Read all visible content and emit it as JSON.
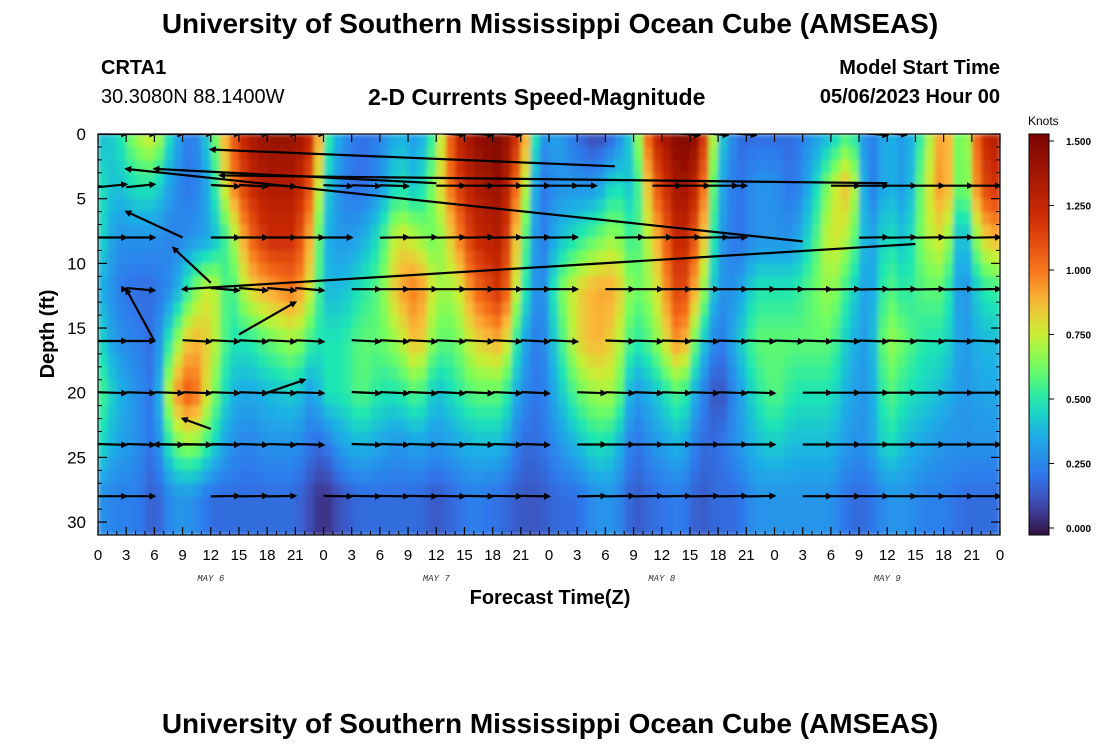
{
  "header": {
    "title": "University of Southern Mississippi Ocean Cube (AMSEAS)",
    "station_id": "CRTA1",
    "station_location": "30.3080N  88.1400W",
    "model_start_label": "Model Start Time",
    "model_start_value": "05/06/2023 Hour 00"
  },
  "footer": {
    "title": "University of Southern Mississippi Ocean Cube (AMSEAS)"
  },
  "chart_data": {
    "type": "heatmap",
    "title": "2-D Currents Speed-Magnitude",
    "xlabel": "Forecast Time(Z)",
    "ylabel": "Depth (ft)",
    "xlim": [
      0,
      96
    ],
    "ylim": [
      0,
      31
    ],
    "x_tick_values": [
      0,
      3,
      6,
      9,
      12,
      15,
      18,
      21,
      24,
      27,
      30,
      33,
      36,
      39,
      42,
      45,
      48,
      51,
      54,
      57,
      60,
      63,
      66,
      69,
      72,
      75,
      78,
      81,
      84,
      87,
      90,
      93,
      96
    ],
    "x_tick_labels": [
      "0",
      "3",
      "6",
      "9",
      "12",
      "15",
      "18",
      "21",
      "0",
      "3",
      "6",
      "9",
      "12",
      "15",
      "18",
      "21",
      "0",
      "3",
      "6",
      "9",
      "12",
      "15",
      "18",
      "21",
      "0",
      "3",
      "6",
      "9",
      "12",
      "15",
      "18",
      "21",
      "0"
    ],
    "day_labels": [
      {
        "text": "MAY 6",
        "x": 12
      },
      {
        "text": "MAY 7",
        "x": 36
      },
      {
        "text": "MAY 8",
        "x": 60
      },
      {
        "text": "MAY 9",
        "x": 84
      }
    ],
    "y_tick_values": [
      0,
      5,
      10,
      15,
      20,
      25,
      30
    ],
    "y_tick_labels": [
      "0",
      "5",
      "10",
      "15",
      "20",
      "25",
      "30"
    ],
    "depths": [
      0,
      4,
      8,
      12,
      16,
      20,
      24,
      28
    ],
    "colorbar": {
      "title": "Knots",
      "range": [
        0.0,
        1.5
      ],
      "tick_values": [
        0.0,
        0.25,
        0.5,
        0.75,
        1.0,
        1.25,
        1.5
      ],
      "tick_labels": [
        "0.000",
        "0.250",
        "0.500",
        "0.750",
        "1.000",
        "1.250",
        "1.500"
      ]
    },
    "speed_columns": [
      {
        "x": 0,
        "s": [
          0.4,
          0.5,
          0.5,
          0.4,
          0.5,
          0.6,
          0.5,
          0.3
        ]
      },
      {
        "x": 2,
        "s": [
          0.45,
          0.4,
          0.3,
          0.25,
          0.3,
          0.4,
          0.35,
          0.25
        ]
      },
      {
        "x": 4,
        "s": [
          0.7,
          0.5,
          0.3,
          0.2,
          0.25,
          0.3,
          0.3,
          0.25
        ]
      },
      {
        "x": 6,
        "s": [
          0.8,
          0.5,
          0.3,
          0.2,
          0.2,
          0.2,
          0.2,
          0.15
        ]
      },
      {
        "x": 8,
        "s": [
          0.4,
          0.3,
          0.25,
          0.3,
          0.6,
          0.9,
          0.6,
          0.3
        ]
      },
      {
        "x": 10,
        "s": [
          0.2,
          0.2,
          0.3,
          0.6,
          0.9,
          1.1,
          0.7,
          0.3
        ]
      },
      {
        "x": 12,
        "s": [
          0.5,
          0.4,
          0.35,
          0.8,
          0.8,
          0.7,
          0.5,
          0.2
        ]
      },
      {
        "x": 14,
        "s": [
          1.0,
          0.9,
          0.6,
          0.5,
          0.5,
          0.4,
          0.3,
          0.2
        ]
      },
      {
        "x": 16,
        "s": [
          1.3,
          1.2,
          1.0,
          0.8,
          0.5,
          0.35,
          0.25,
          0.2
        ]
      },
      {
        "x": 18,
        "s": [
          1.4,
          1.3,
          1.2,
          0.9,
          0.6,
          0.4,
          0.3,
          0.2
        ]
      },
      {
        "x": 21,
        "s": [
          1.4,
          1.3,
          1.2,
          1.0,
          0.7,
          0.45,
          0.3,
          0.2
        ]
      },
      {
        "x": 23,
        "s": [
          1.2,
          1.0,
          0.8,
          0.7,
          0.5,
          0.3,
          0.2,
          0.1
        ]
      },
      {
        "x": 24,
        "s": [
          0.6,
          0.5,
          0.4,
          0.4,
          0.5,
          0.5,
          0.2,
          0.05
        ]
      },
      {
        "x": 26,
        "s": [
          0.3,
          0.25,
          0.3,
          0.4,
          0.5,
          0.5,
          0.35,
          0.15
        ]
      },
      {
        "x": 28,
        "s": [
          0.2,
          0.2,
          0.35,
          0.5,
          0.6,
          0.6,
          0.4,
          0.2
        ]
      },
      {
        "x": 30,
        "s": [
          0.25,
          0.3,
          0.5,
          0.6,
          0.6,
          0.5,
          0.35,
          0.2
        ]
      },
      {
        "x": 32,
        "s": [
          0.4,
          0.5,
          0.8,
          0.9,
          0.7,
          0.5,
          0.3,
          0.2
        ]
      },
      {
        "x": 34,
        "s": [
          0.3,
          0.4,
          0.7,
          1.0,
          0.9,
          0.6,
          0.35,
          0.2
        ]
      },
      {
        "x": 36,
        "s": [
          0.6,
          0.7,
          0.6,
          0.7,
          0.6,
          0.4,
          0.3,
          0.15
        ]
      },
      {
        "x": 38,
        "s": [
          1.2,
          1.1,
          0.9,
          0.7,
          0.6,
          0.5,
          0.35,
          0.2
        ]
      },
      {
        "x": 40,
        "s": [
          1.4,
          1.3,
          1.2,
          1.0,
          0.8,
          0.6,
          0.4,
          0.25
        ]
      },
      {
        "x": 43,
        "s": [
          1.5,
          1.4,
          1.3,
          1.2,
          0.9,
          0.6,
          0.4,
          0.2
        ]
      },
      {
        "x": 45,
        "s": [
          1.1,
          0.9,
          0.7,
          0.6,
          0.4,
          0.3,
          0.2,
          0.15
        ]
      },
      {
        "x": 47,
        "s": [
          0.3,
          0.2,
          0.2,
          0.2,
          0.2,
          0.2,
          0.2,
          0.15
        ]
      },
      {
        "x": 49,
        "s": [
          0.35,
          0.3,
          0.4,
          0.6,
          0.5,
          0.4,
          0.3,
          0.2
        ]
      },
      {
        "x": 51,
        "s": [
          0.2,
          0.3,
          0.5,
          0.8,
          0.8,
          0.6,
          0.4,
          0.2
        ]
      },
      {
        "x": 53,
        "s": [
          0.1,
          0.3,
          0.6,
          0.9,
          0.9,
          0.7,
          0.5,
          0.3
        ]
      },
      {
        "x": 55,
        "s": [
          0.2,
          0.5,
          0.7,
          0.9,
          0.8,
          0.7,
          0.45,
          0.3
        ]
      },
      {
        "x": 57,
        "s": [
          0.5,
          0.4,
          0.5,
          0.6,
          0.5,
          0.3,
          0.2,
          0.15
        ]
      },
      {
        "x": 59,
        "s": [
          1.2,
          1.0,
          0.8,
          0.7,
          0.6,
          0.4,
          0.3,
          0.2
        ]
      },
      {
        "x": 62,
        "s": [
          1.5,
          1.4,
          1.3,
          1.2,
          1.0,
          0.6,
          0.4,
          0.25
        ]
      },
      {
        "x": 64,
        "s": [
          1.4,
          1.2,
          1.0,
          0.8,
          0.5,
          0.3,
          0.2,
          0.15
        ]
      },
      {
        "x": 66,
        "s": [
          0.5,
          0.4,
          0.35,
          0.3,
          0.2,
          0.1,
          0.2,
          0.2
        ]
      },
      {
        "x": 68,
        "s": [
          0.2,
          0.2,
          0.2,
          0.3,
          0.4,
          0.3,
          0.3,
          0.2
        ]
      },
      {
        "x": 70,
        "s": [
          0.2,
          0.3,
          0.3,
          0.5,
          0.6,
          0.5,
          0.4,
          0.3
        ]
      },
      {
        "x": 72,
        "s": [
          0.2,
          0.3,
          0.3,
          0.5,
          0.6,
          0.6,
          0.45,
          0.3
        ]
      },
      {
        "x": 74,
        "s": [
          0.2,
          0.2,
          0.3,
          0.5,
          0.6,
          0.5,
          0.4,
          0.3
        ]
      },
      {
        "x": 76,
        "s": [
          0.3,
          0.4,
          0.5,
          0.6,
          0.6,
          0.5,
          0.4,
          0.3
        ]
      },
      {
        "x": 78,
        "s": [
          0.4,
          0.7,
          0.8,
          0.7,
          0.6,
          0.5,
          0.4,
          0.3
        ]
      },
      {
        "x": 80,
        "s": [
          0.6,
          0.9,
          0.7,
          0.5,
          0.4,
          0.35,
          0.3,
          0.2
        ]
      },
      {
        "x": 82,
        "s": [
          0.2,
          0.2,
          0.3,
          0.3,
          0.3,
          0.3,
          0.3,
          0.2
        ]
      },
      {
        "x": 84,
        "s": [
          0.4,
          0.4,
          0.5,
          0.6,
          0.7,
          0.6,
          0.5,
          0.3
        ]
      },
      {
        "x": 86,
        "s": [
          0.3,
          0.3,
          0.4,
          0.5,
          0.6,
          0.5,
          0.4,
          0.3
        ]
      },
      {
        "x": 88,
        "s": [
          0.6,
          0.7,
          0.7,
          0.6,
          0.5,
          0.45,
          0.35,
          0.25
        ]
      },
      {
        "x": 90,
        "s": [
          1.0,
          1.0,
          0.8,
          0.6,
          0.5,
          0.4,
          0.3,
          0.25
        ]
      },
      {
        "x": 92,
        "s": [
          0.5,
          0.5,
          0.3,
          0.25,
          0.3,
          0.3,
          0.3,
          0.2
        ]
      },
      {
        "x": 94,
        "s": [
          1.2,
          1.1,
          0.8,
          0.5,
          0.4,
          0.35,
          0.3,
          0.2
        ]
      },
      {
        "x": 96,
        "s": [
          1.3,
          1.2,
          0.9,
          0.55,
          0.4,
          0.35,
          0.3,
          0.2
        ]
      }
    ],
    "vector_rows": [
      {
        "depth": 0,
        "segments": [
          [
            0,
            24,
            90
          ],
          [
            36,
            45,
            94
          ],
          [
            61,
            70,
            95
          ],
          [
            81,
            86,
            95
          ]
        ]
      },
      {
        "depth": 4,
        "segments": [
          [
            0,
            6,
            84
          ],
          [
            12,
            21,
            93
          ],
          [
            24,
            33,
            92
          ],
          [
            36,
            53,
            90
          ],
          [
            59,
            69,
            90
          ],
          [
            78,
            96,
            90
          ]
        ]
      },
      {
        "depth": 8,
        "segments": [
          [
            0,
            6,
            90
          ],
          [
            12,
            27,
            90
          ],
          [
            30,
            51,
            89
          ],
          [
            55,
            69,
            89
          ],
          [
            81,
            96,
            89
          ]
        ]
      },
      {
        "depth": 12,
        "segments": [
          [
            3,
            6,
            95
          ],
          [
            12,
            24,
            95
          ],
          [
            27,
            51,
            90
          ],
          [
            54,
            78,
            90
          ],
          [
            78,
            96,
            89
          ]
        ]
      },
      {
        "depth": 16,
        "segments": [
          [
            0,
            6,
            90
          ],
          [
            9,
            24,
            93
          ],
          [
            27,
            51,
            93
          ],
          [
            54,
            78,
            92
          ],
          [
            78,
            96,
            92
          ]
        ]
      },
      {
        "depth": 20,
        "segments": [
          [
            0,
            24,
            92
          ],
          [
            27,
            48,
            93
          ],
          [
            51,
            72,
            92
          ],
          [
            75,
            96,
            90
          ]
        ]
      },
      {
        "depth": 24,
        "segments": [
          [
            0,
            24,
            92
          ],
          [
            27,
            48,
            92
          ],
          [
            51,
            72,
            90
          ],
          [
            75,
            96,
            90
          ]
        ]
      },
      {
        "depth": 28,
        "segments": [
          [
            0,
            6,
            90
          ],
          [
            12,
            21,
            89
          ],
          [
            24,
            48,
            91
          ],
          [
            51,
            72,
            89
          ],
          [
            75,
            96,
            90
          ]
        ]
      }
    ],
    "vector_single": [
      [
        55,
        2.5,
        12,
        1.2
      ],
      [
        36,
        3.8,
        6,
        2.7
      ],
      [
        84,
        3.8,
        13,
        3.2
      ],
      [
        75,
        8.3,
        3,
        2.7
      ],
      [
        9,
        8,
        3,
        6
      ],
      [
        87,
        8.5,
        9,
        12
      ],
      [
        3,
        12,
        3,
        12
      ],
      [
        12,
        11.5,
        8,
        8.8
      ],
      [
        6,
        16,
        3,
        12
      ],
      [
        15,
        15.5,
        21,
        13
      ],
      [
        18,
        20,
        22,
        19
      ],
      [
        12,
        22.8,
        9,
        22
      ],
      [
        15,
        24,
        6,
        24
      ]
    ]
  }
}
